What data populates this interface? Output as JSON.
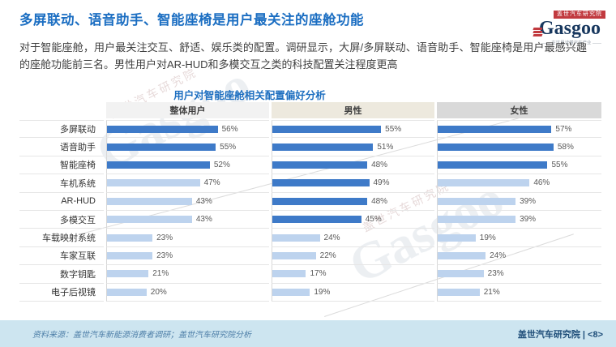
{
  "page": {
    "title": "多屏联动、语音助手、智能座椅是用户最关注的座舱功能",
    "body_text": "对于智能座舱，用户最关注交互、舒适、娱乐类的配置。调研显示，大屏/多屏联动、语音助手、智能座椅是用户最感兴趣的座舱功能前三名。男性用户对AR-HUD和多模交互之类的科技配置关注程度更高",
    "footer_source": "资料来源：盖世汽车新能源消费者调研；盖世汽车研究院分析",
    "footer_right": "盖世汽车研究院 | <8>",
    "page_number": "8"
  },
  "logo": {
    "brand": "Gasgoo",
    "banner": "盖世汽车研究院",
    "slogan": "在这里读懂汽车产业"
  },
  "watermark": {
    "brand": "Gasgoo",
    "label": "盖世汽车研究院"
  },
  "colors": {
    "title_blue": "#1B6EC2",
    "chart_title_blue": "#1E6FC0",
    "bar_emphasized": "#3E7AC8",
    "bar_normal": "#BDD3EE",
    "footer_bg": "#CDE5F0",
    "brand_red": "#C13A3F",
    "brand_navy": "#17375E"
  },
  "chart_data": {
    "type": "bar",
    "orientation": "horizontal",
    "title": "用户对智能座舱相关配置偏好分析",
    "unit": "%",
    "xlim": [
      0,
      82
    ],
    "grid": true,
    "categories": [
      "多屏联动",
      "语音助手",
      "智能座椅",
      "车机系统",
      "AR-HUD",
      "多模交互",
      "车载映射系统",
      "车家互联",
      "数字钥匙",
      "电子后视镜"
    ],
    "series": [
      {
        "name": "整体用户",
        "header_bg": "#F2F2F2",
        "values": [
          56,
          55,
          52,
          47,
          43,
          43,
          23,
          23,
          21,
          20
        ],
        "emphasized": [
          true,
          true,
          true,
          false,
          false,
          false,
          false,
          false,
          false,
          false
        ]
      },
      {
        "name": "男性",
        "header_bg": "#EDE9DE",
        "values": [
          55,
          51,
          48,
          49,
          48,
          45,
          24,
          22,
          17,
          19
        ],
        "emphasized": [
          true,
          true,
          true,
          true,
          true,
          true,
          false,
          false,
          false,
          false
        ]
      },
      {
        "name": "女性",
        "header_bg": "#D9D9D9",
        "values": [
          57,
          58,
          55,
          46,
          39,
          39,
          19,
          24,
          23,
          21
        ],
        "emphasized": [
          true,
          true,
          true,
          false,
          false,
          false,
          false,
          false,
          false,
          false
        ]
      }
    ],
    "bar_colors": {
      "emphasized": "#3E7AC8",
      "normal": "#BDD3EE"
    }
  }
}
